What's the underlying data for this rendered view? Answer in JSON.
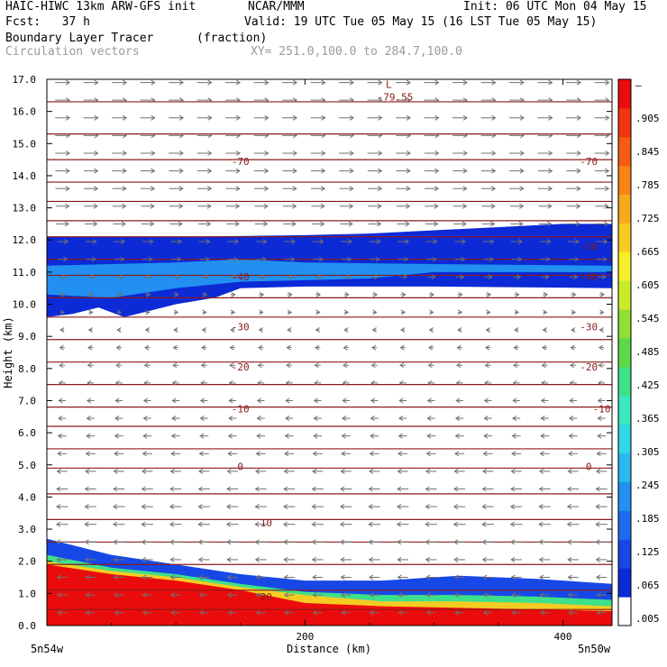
{
  "header": {
    "model": "HAIC-HIWC 13km ARW-GFS init",
    "org": "NCAR/MMM",
    "init": "Init: 06 UTC Mon 04 May 15",
    "fcst": "Fcst:   37 h",
    "valid": "Valid: 19 UTC Tue 05 May 15 (16 LST Tue 05 May 15)",
    "field": "Boundary Layer Tracer",
    "units": "(fraction)",
    "field2": "Circulation vectors",
    "xy": "XY= 251.0,100.0 to 284.7,100.0"
  },
  "colors": {
    "contour": "#8b1a1a",
    "vector": "#707070",
    "cbar": [
      "#ffffff",
      "#0c2ad6",
      "#1748e6",
      "#1f6aee",
      "#2290f0",
      "#29b8f0",
      "#2fd8e4",
      "#3ce8c0",
      "#3ee08a",
      "#5cd848",
      "#8ee036",
      "#c8ec2a",
      "#f6ee26",
      "#f6cc22",
      "#f8a81c",
      "#f88418",
      "#f65c14",
      "#f23410",
      "#ea0c0c"
    ]
  },
  "chart_data": {
    "type": "cross-section",
    "xlabel": "Distance (km)",
    "ylabel": "Height (km)",
    "xlim": [
      0,
      438
    ],
    "ylim": [
      0,
      17
    ],
    "xticks": [
      {
        "value": 200,
        "label": "200"
      },
      {
        "value": 400,
        "label": "400"
      }
    ],
    "x_end_labels": {
      "left": "5n54w",
      "right": "5n50w"
    },
    "yticks": [
      "0.0",
      "1.0",
      "2.0",
      "3.0",
      "4.0",
      "5.0",
      "6.0",
      "7.0",
      "8.0",
      "9.0",
      "10.0",
      "11.0",
      "12.0",
      "13.0",
      "14.0",
      "15.0",
      "16.0",
      "17.0"
    ],
    "colorbar_labels": [
      ".005",
      ".065",
      ".125",
      ".185",
      ".245",
      ".305",
      ".365",
      ".425",
      ".485",
      ".545",
      ".605",
      ".665",
      ".725",
      ".785",
      ".845",
      ".905",
      "–"
    ],
    "contour_labels": [
      {
        "text": "-79.55",
        "x": 270,
        "y": 16.45
      },
      {
        "text": "L",
        "x": 265,
        "y": 16.85
      },
      {
        "text": "-70",
        "x": 150,
        "y": 14.45
      },
      {
        "text": "-70",
        "x": 420,
        "y": 14.45
      },
      {
        "text": "-50",
        "x": 420,
        "y": 11.8
      },
      {
        "text": "-40",
        "x": 150,
        "y": 10.85
      },
      {
        "text": "-40",
        "x": 420,
        "y": 10.85
      },
      {
        "text": "-30",
        "x": 150,
        "y": 9.3
      },
      {
        "text": "-30",
        "x": 420,
        "y": 9.3
      },
      {
        "text": "-20",
        "x": 150,
        "y": 8.05
      },
      {
        "text": "-20",
        "x": 420,
        "y": 8.05
      },
      {
        "text": "-10",
        "x": 150,
        "y": 6.75
      },
      {
        "text": "-10",
        "x": 430,
        "y": 6.75
      },
      {
        "text": "0",
        "x": 150,
        "y": 4.95
      },
      {
        "text": "0",
        "x": 420,
        "y": 4.95
      },
      {
        "text": "10",
        "x": 170,
        "y": 3.2
      },
      {
        "text": "20",
        "x": 170,
        "y": 0.9
      }
    ],
    "isotherm_heights": [
      16.3,
      15.3,
      14.5,
      13.8,
      13.2,
      12.6,
      12.1,
      11.4,
      10.9,
      10.2,
      9.6,
      8.9,
      8.2,
      7.5,
      6.8,
      6.2,
      5.5,
      4.9,
      4.1,
      3.3,
      2.6,
      1.9,
      1.1,
      0.5
    ],
    "tracer_layers": [
      {
        "level": ".005",
        "top": [
          [
            0,
            2.7
          ],
          [
            50,
            2.2
          ],
          [
            100,
            1.9
          ],
          [
            150,
            1.6
          ],
          [
            200,
            1.4
          ],
          [
            260,
            1.4
          ],
          [
            320,
            1.55
          ],
          [
            380,
            1.45
          ],
          [
            438,
            1.3
          ]
        ]
      },
      {
        "level": ".125",
        "top": [
          [
            0,
            2.2
          ],
          [
            50,
            1.8
          ],
          [
            100,
            1.6
          ],
          [
            150,
            1.3
          ],
          [
            200,
            1.05
          ],
          [
            260,
            0.95
          ],
          [
            320,
            0.95
          ],
          [
            380,
            0.9
          ],
          [
            438,
            0.8
          ]
        ]
      },
      {
        "level": ".485",
        "top": [
          [
            0,
            2.0
          ],
          [
            50,
            1.7
          ],
          [
            100,
            1.5
          ],
          [
            150,
            1.2
          ],
          [
            200,
            0.95
          ],
          [
            260,
            0.75
          ],
          [
            320,
            0.75
          ],
          [
            380,
            0.7
          ],
          [
            438,
            0.6
          ]
        ]
      },
      {
        "level": ".905",
        "top": [
          [
            0,
            1.9
          ],
          [
            50,
            1.6
          ],
          [
            100,
            1.4
          ],
          [
            150,
            1.1
          ],
          [
            200,
            0.7
          ],
          [
            260,
            0.6
          ],
          [
            320,
            0.55
          ],
          [
            380,
            0.5
          ],
          [
            438,
            0.45
          ]
        ]
      }
    ],
    "upper_band": {
      "top": [
        [
          0,
          12.1
        ],
        [
          100,
          12.1
        ],
        [
          200,
          12.15
        ],
        [
          250,
          12.2
        ],
        [
          300,
          12.3
        ],
        [
          350,
          12.4
        ],
        [
          400,
          12.5
        ],
        [
          438,
          12.5
        ]
      ],
      "bottom": [
        [
          0,
          9.6
        ],
        [
          20,
          9.7
        ],
        [
          40,
          9.9
        ],
        [
          60,
          9.6
        ],
        [
          80,
          9.8
        ],
        [
          100,
          10.0
        ],
        [
          130,
          10.2
        ],
        [
          150,
          10.5
        ],
        [
          200,
          10.55
        ],
        [
          300,
          10.55
        ],
        [
          438,
          10.5
        ]
      ],
      "core_top": [
        [
          0,
          11.2
        ],
        [
          100,
          11.3
        ],
        [
          150,
          11.4
        ],
        [
          200,
          11.3
        ],
        [
          300,
          11.25
        ],
        [
          438,
          11.2
        ]
      ],
      "core_bottom": [
        [
          0,
          10.3
        ],
        [
          50,
          10.2
        ],
        [
          100,
          10.5
        ],
        [
          150,
          10.7
        ],
        [
          250,
          10.8
        ],
        [
          300,
          11.0
        ],
        [
          438,
          11.0
        ]
      ]
    },
    "wind_profile": [
      {
        "z": 16.5,
        "u": 1.0
      },
      {
        "z": 15.0,
        "u": 1.0
      },
      {
        "z": 13.5,
        "u": 0.95
      },
      {
        "z": 12.5,
        "u": 0.85
      },
      {
        "z": 11.0,
        "u": 0.6
      },
      {
        "z": 10.0,
        "u": 0.2
      },
      {
        "z": 9.0,
        "u": -0.3
      },
      {
        "z": 7.5,
        "u": -0.45
      },
      {
        "z": 6.0,
        "u": -0.55
      },
      {
        "z": 4.5,
        "u": -0.75
      },
      {
        "z": 3.0,
        "u": -0.8
      },
      {
        "z": 1.5,
        "u": -0.7
      },
      {
        "z": 0.3,
        "u": -0.6
      }
    ]
  }
}
